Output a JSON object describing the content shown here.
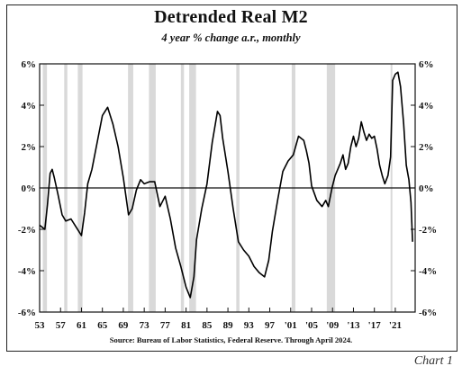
{
  "page": {
    "chart_label": "Chart 1"
  },
  "chart_data": {
    "type": "line",
    "title": "Detrended Real M2",
    "subtitle": "4 year % change a.r., monthly",
    "source": "Source: Bureau of Labor Statistics, Federal Reserve. Through April 2024.",
    "xlabel": "",
    "ylabel": "",
    "x_tick_labels": [
      "53",
      "57",
      "61",
      "65",
      "69",
      "73",
      "77",
      "81",
      "85",
      "89",
      "93",
      "97",
      "'01",
      "'05",
      "'09",
      "'13",
      "'17",
      "'21"
    ],
    "x_tick_years": [
      1953,
      1957,
      1961,
      1965,
      1969,
      1973,
      1977,
      1981,
      1985,
      1989,
      1993,
      1997,
      2001,
      2005,
      2009,
      2013,
      2017,
      2021
    ],
    "y_tick_labels": [
      "6%",
      "4%",
      "2%",
      "0%",
      "-2%",
      "-4%",
      "-6%"
    ],
    "y_tick_values": [
      6,
      4,
      2,
      0,
      -2,
      -4,
      -6
    ],
    "xlim": [
      1953,
      2024.8
    ],
    "ylim": [
      -6,
      6
    ],
    "grid": false,
    "reference_line": 0,
    "recessions": [
      [
        1953.6,
        1954.4
      ],
      [
        1957.7,
        1958.3
      ],
      [
        1960.3,
        1961.2
      ],
      [
        1969.9,
        1970.9
      ],
      [
        1973.9,
        1975.2
      ],
      [
        1980.0,
        1980.6
      ],
      [
        1981.6,
        1982.9
      ],
      [
        1990.6,
        1991.2
      ],
      [
        2001.2,
        2001.9
      ],
      [
        2007.9,
        2009.5
      ],
      [
        2020.1,
        2020.4
      ]
    ],
    "series": [
      {
        "points": [
          [
            1953.0,
            -1.8
          ],
          [
            1953.5,
            -1.9
          ],
          [
            1954.0,
            -2.0
          ],
          [
            1954.5,
            -0.8
          ],
          [
            1955.0,
            0.7
          ],
          [
            1955.4,
            0.9
          ],
          [
            1955.8,
            0.5
          ],
          [
            1956.5,
            -0.3
          ],
          [
            1957.3,
            -1.3
          ],
          [
            1958.0,
            -1.6
          ],
          [
            1959.0,
            -1.5
          ],
          [
            1960.0,
            -1.9
          ],
          [
            1961.0,
            -2.3
          ],
          [
            1961.6,
            -1.2
          ],
          [
            1962.2,
            0.2
          ],
          [
            1963.0,
            0.9
          ],
          [
            1964.0,
            2.2
          ],
          [
            1965.0,
            3.5
          ],
          [
            1966.0,
            3.9
          ],
          [
            1967.0,
            3.1
          ],
          [
            1968.0,
            2.0
          ],
          [
            1969.0,
            0.5
          ],
          [
            1970.0,
            -1.3
          ],
          [
            1970.7,
            -1.0
          ],
          [
            1971.5,
            -0.1
          ],
          [
            1972.3,
            0.4
          ],
          [
            1973.0,
            0.2
          ],
          [
            1974.0,
            0.3
          ],
          [
            1975.0,
            0.3
          ],
          [
            1976.0,
            -0.9
          ],
          [
            1977.0,
            -0.4
          ],
          [
            1978.0,
            -1.5
          ],
          [
            1979.0,
            -2.9
          ],
          [
            1980.0,
            -3.8
          ],
          [
            1981.0,
            -4.8
          ],
          [
            1981.8,
            -5.3
          ],
          [
            1982.5,
            -4.3
          ],
          [
            1983.0,
            -2.5
          ],
          [
            1984.0,
            -1.0
          ],
          [
            1985.0,
            0.2
          ],
          [
            1986.0,
            2.2
          ],
          [
            1987.0,
            3.7
          ],
          [
            1987.5,
            3.5
          ],
          [
            1988.0,
            2.4
          ],
          [
            1989.0,
            0.8
          ],
          [
            1990.0,
            -1.0
          ],
          [
            1991.0,
            -2.6
          ],
          [
            1992.0,
            -3.0
          ],
          [
            1993.0,
            -3.3
          ],
          [
            1994.0,
            -3.8
          ],
          [
            1995.0,
            -4.1
          ],
          [
            1996.0,
            -4.3
          ],
          [
            1996.8,
            -3.5
          ],
          [
            1997.5,
            -2.1
          ],
          [
            1998.5,
            -0.6
          ],
          [
            1999.5,
            0.8
          ],
          [
            2000.5,
            1.3
          ],
          [
            2001.5,
            1.6
          ],
          [
            2002.5,
            2.5
          ],
          [
            2003.5,
            2.3
          ],
          [
            2004.0,
            1.8
          ],
          [
            2004.5,
            1.2
          ],
          [
            2005.0,
            0.1
          ],
          [
            2006.0,
            -0.6
          ],
          [
            2007.0,
            -0.9
          ],
          [
            2007.7,
            -0.6
          ],
          [
            2008.2,
            -0.9
          ],
          [
            2008.9,
            0.0
          ],
          [
            2009.5,
            0.6
          ],
          [
            2010.5,
            1.2
          ],
          [
            2011.0,
            1.6
          ],
          [
            2011.5,
            0.9
          ],
          [
            2012.0,
            1.2
          ],
          [
            2012.5,
            2.0
          ],
          [
            2013.0,
            2.5
          ],
          [
            2013.5,
            2.0
          ],
          [
            2014.0,
            2.4
          ],
          [
            2014.5,
            3.2
          ],
          [
            2015.0,
            2.7
          ],
          [
            2015.5,
            2.3
          ],
          [
            2016.0,
            2.6
          ],
          [
            2016.5,
            2.4
          ],
          [
            2017.0,
            2.5
          ],
          [
            2017.5,
            1.9
          ],
          [
            2018.0,
            1.1
          ],
          [
            2018.5,
            0.6
          ],
          [
            2019.0,
            0.2
          ],
          [
            2019.6,
            0.6
          ],
          [
            2020.1,
            1.5
          ],
          [
            2020.5,
            5.2
          ],
          [
            2021.0,
            5.5
          ],
          [
            2021.5,
            5.6
          ],
          [
            2022.0,
            4.9
          ],
          [
            2022.6,
            3.1
          ],
          [
            2023.1,
            1.1
          ],
          [
            2023.6,
            0.4
          ],
          [
            2024.0,
            -0.7
          ],
          [
            2024.3,
            -2.6
          ]
        ]
      }
    ]
  }
}
